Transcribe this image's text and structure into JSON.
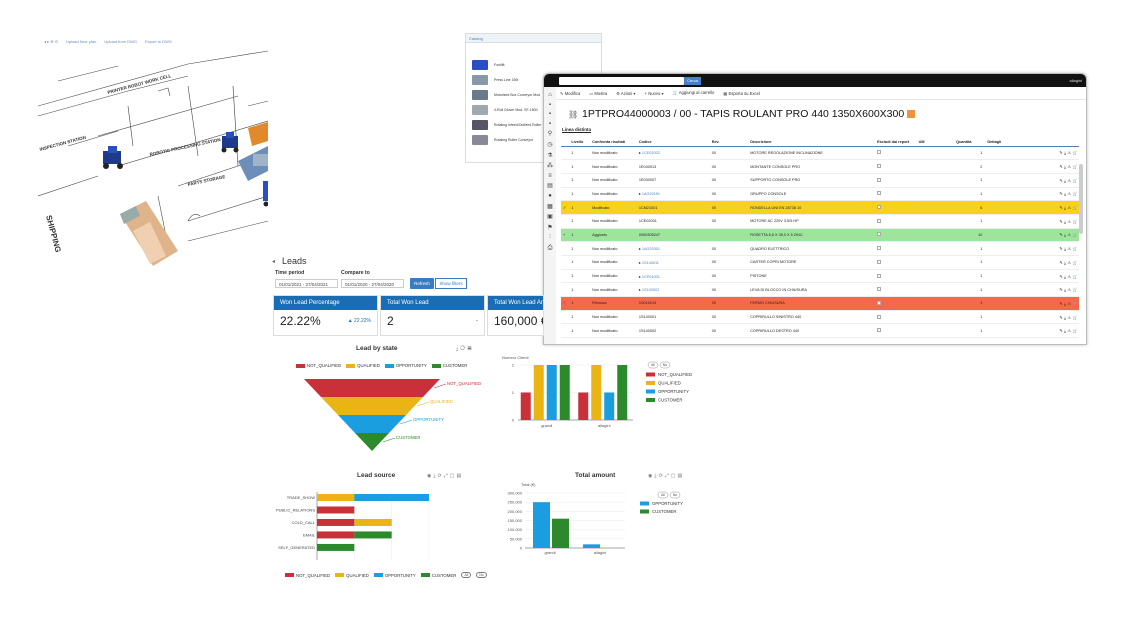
{
  "factory": {
    "toolbar": [
      "Upload floor plan",
      "Upload from DWG",
      "Export to DWG"
    ],
    "labels": [
      "INSPECTION STATION",
      "PRINTER ROBOT WORK CELL",
      "ROBOTIC PROCESSING STATION",
      "PARTS STORAGE",
      "SHIPPING"
    ]
  },
  "catalog": {
    "title": "Catalog",
    "items": [
      "Forklift",
      "Press Line 150t",
      "Motorized Box Conveyor Mod",
      "4-Roll Glover Mod. SF-1500",
      "Rotating Infeed/Outfeed Roller",
      "Rotating Roller Conveyor"
    ]
  },
  "bom": {
    "search_button": "Cerca",
    "user": "allagini",
    "toolbar": [
      "Modifica",
      "Mostra",
      "Azioni ▾",
      "Nuovo ▾",
      "Aggiungi al carrello",
      "Esporta su Excel"
    ],
    "title": "1PTPRO44000003 / 00 - TAPIS ROULANT PRO 440 1350X600X300",
    "tab": "Linea distinta",
    "columns": [
      "Livello",
      "Confronta risultati",
      "Codice",
      "Rev.",
      "Descrizione",
      "Escludi dai report",
      "UM",
      "Quantità",
      "Dettagli"
    ],
    "rows": [
      {
        "livello": "1",
        "stato": "Non modificato",
        "codice": "1CE02002",
        "rev": "00",
        "descr": "MOTORE REGOLAZIONE INCLINAZIONE",
        "qta": "1",
        "type": "",
        "link": true
      },
      {
        "livello": "1",
        "stato": "Non modificato",
        "codice": "1E040013",
        "rev": "00",
        "descr": "MONTANTE CONSOLE PRO",
        "qta": "2",
        "type": "",
        "link": false
      },
      {
        "livello": "1",
        "stato": "Non modificato",
        "codice": "1E030007",
        "rev": "00",
        "descr": "SUPPORTO CONSOLE PRO",
        "qta": "1",
        "type": "",
        "link": false
      },
      {
        "livello": "1",
        "stato": "Non modificato",
        "codice": "1AG20191",
        "rev": "00",
        "descr": "GRUPPO CONSOLE",
        "qta": "1",
        "type": "",
        "link": true
      },
      {
        "livello": "1",
        "stato": "Modificato",
        "codice": "1CM21001",
        "rev": "00",
        "descr": "RONDELLA UNI EN 28738 10",
        "qta": "6",
        "type": "mod",
        "link": false
      },
      {
        "livello": "1",
        "stato": "Non modificato",
        "codice": "1CE02001",
        "rev": "00",
        "descr": "MOTORE AC 220V 3.5/5 HP",
        "qta": "1",
        "type": "",
        "link": false
      },
      {
        "livello": "1",
        "stato": "Aggiunto",
        "codice": "0000305247",
        "rev": "",
        "descr": "ROSETTA 8,5 X 35,0 X 5 ZINC.",
        "qta": "10",
        "type": "add",
        "link": false
      },
      {
        "livello": "1",
        "stato": "Non modificato",
        "codice": "1AG20301",
        "rev": "00",
        "descr": "QUADRO ELETTRICO",
        "qta": "1",
        "type": "",
        "link": true
      },
      {
        "livello": "1",
        "stato": "Non modificato",
        "codice": "1S140011",
        "rev": "00",
        "descr": "CARTER COPRI MOTORE",
        "qta": "1",
        "type": "",
        "link": true
      },
      {
        "livello": "1",
        "stato": "Non modificato",
        "codice": "1CP01001",
        "rev": "00",
        "descr": "PISTONE",
        "qta": "1",
        "type": "",
        "link": true
      },
      {
        "livello": "1",
        "stato": "Non modificato",
        "codice": "1S100002",
        "rev": "00",
        "descr": "LEVA DI BLOCCO IN CHIUSURA",
        "qta": "1",
        "type": "",
        "link": true
      },
      {
        "livello": "1",
        "stato": "Rimosso",
        "codice": "1S010019",
        "rev": "00",
        "descr": "FERMO CHIUSURA",
        "qta": "1",
        "type": "rem",
        "link": false
      },
      {
        "livello": "1",
        "stato": "Non modificato",
        "codice": "1S140001",
        "rev": "00",
        "descr": "COPRIRULLO SINISTRO 440",
        "qta": "1",
        "type": "",
        "link": false
      },
      {
        "livello": "1",
        "stato": "Non modificato",
        "codice": "1S140002",
        "rev": "00",
        "descr": "COPRIRULLO DESTRO 440",
        "qta": "1",
        "type": "",
        "link": false
      }
    ]
  },
  "leads": {
    "title": "Leads",
    "time_period_label": "Time period",
    "time_period_value": "01/01/2021 - 27/04/2021",
    "compare_label": "Compare to",
    "compare_value": "01/01/2020 - 27/04/2020",
    "refresh": "Refresh",
    "show_filters": "Show filters",
    "kpis": [
      {
        "label": "Won Lead Percentage",
        "value": "22.22%",
        "delta": "▲ 22.22%"
      },
      {
        "label": "Total Won Lead",
        "value": "2",
        "delta": "-"
      },
      {
        "label": "Total Won Lead Am",
        "value": "160,000 €",
        "delta": ""
      }
    ]
  },
  "colors": {
    "not_qualified": "#c9303a",
    "qualified": "#e9b414",
    "opportunity": "#1b9ee0",
    "customer": "#2c8a2c"
  },
  "chart_data": [
    {
      "type": "funnel",
      "title": "Lead by state",
      "categories": [
        "NOT_QUALIFIED",
        "QUALIFIED",
        "OPPORTUNITY",
        "CUSTOMER"
      ],
      "legend": [
        "NOT_QUALIFIED",
        "QUALIFIED",
        "OPPORTUNITY",
        "CUSTOMER"
      ]
    },
    {
      "type": "bar",
      "ylabel": "Numero Clienti",
      "categories": [
        "grandi",
        "allagini"
      ],
      "ylim": [
        0,
        2
      ],
      "yticks": [
        "0",
        "1",
        "2"
      ],
      "series": [
        {
          "name": "NOT_QUALIFIED",
          "values": [
            1,
            1
          ]
        },
        {
          "name": "QUALIFIED",
          "values": [
            2,
            2
          ]
        },
        {
          "name": "OPPORTUNITY",
          "values": [
            2,
            1
          ]
        },
        {
          "name": "CUSTOMER",
          "values": [
            2,
            2
          ]
        }
      ],
      "legend_pills": [
        "All",
        "No"
      ]
    },
    {
      "type": "bar-horizontal-stacked",
      "title": "Lead source",
      "categories": [
        "TRADE_SHOW",
        "PUBLIC_RELATIONS",
        "COLD_CALL",
        "EMAIL",
        "SELF_GENERATED"
      ],
      "xlim": [
        0,
        3
      ],
      "xticks": [
        "0",
        "1",
        "2",
        "3"
      ],
      "series": [
        {
          "name": "NOT_QUALIFIED",
          "values": [
            0,
            1,
            1,
            1,
            0
          ]
        },
        {
          "name": "QUALIFIED",
          "values": [
            1,
            0,
            1,
            0,
            0
          ]
        },
        {
          "name": "OPPORTUNITY",
          "values": [
            2,
            0,
            0,
            0,
            0
          ]
        },
        {
          "name": "CUSTOMER",
          "values": [
            0,
            0,
            0,
            1,
            1
          ]
        }
      ],
      "legend_pills": [
        "All",
        "No"
      ]
    },
    {
      "type": "bar",
      "title": "Total amount",
      "ylabel": "Total (€)",
      "categories": [
        "grandi",
        "allagini"
      ],
      "ylim": [
        0,
        300000
      ],
      "yticks": [
        "0",
        "50,000",
        "100,000",
        "150,000",
        "200,000",
        "250,000",
        "300,000"
      ],
      "series": [
        {
          "name": "OPPORTUNITY",
          "values": [
            250000,
            20000
          ]
        },
        {
          "name": "CUSTOMER",
          "values": [
            160000,
            0
          ]
        }
      ],
      "legend_pills": [
        "All",
        "No"
      ]
    }
  ]
}
